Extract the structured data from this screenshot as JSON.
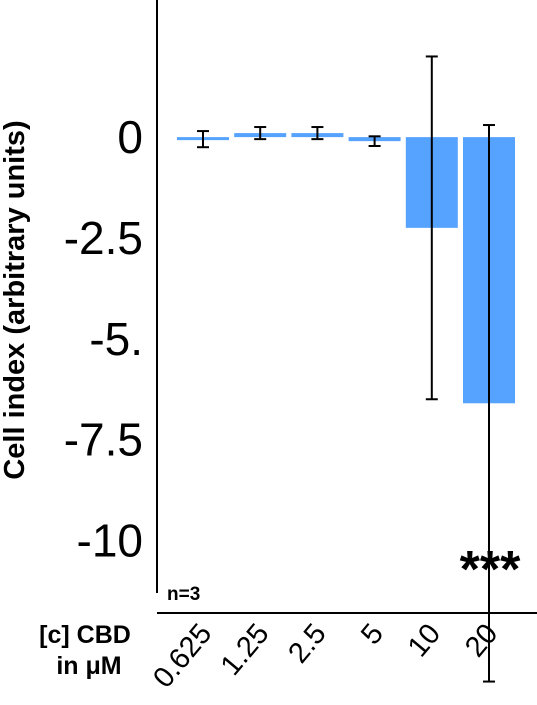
{
  "chart_data": {
    "type": "bar",
    "ylabel": "Cell index (arbitrary units)",
    "xlabel_line1": "[c] CBD",
    "xlabel_line2": "in μM",
    "categories": [
      "0.625",
      "1.25",
      "2.5",
      "5",
      "10",
      "20"
    ],
    "values": [
      -0.05,
      0.1,
      0.1,
      -0.1,
      -2.25,
      -6.6
    ],
    "error": [
      0.2,
      0.15,
      0.15,
      0.12,
      4.25,
      6.9
    ],
    "y_ticks": [
      0,
      -2.5,
      -5,
      -7.5,
      -10
    ],
    "y_tick_labels": [
      "0",
      "-2.5",
      "-5.",
      "-7.5",
      "-10"
    ],
    "ylim": [
      -11.8,
      3.4
    ],
    "annotation": "n=3",
    "significance": "***",
    "bar_color": "#56a2ff",
    "grid": false
  }
}
